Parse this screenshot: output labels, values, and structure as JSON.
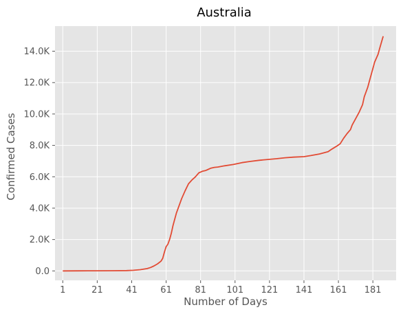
{
  "chart_data": {
    "type": "line",
    "title": "Australia",
    "xlabel": "Number of Days",
    "ylabel": "Confirmed Cases",
    "xlim": [
      -3.5,
      194.5
    ],
    "ylim": [
      -600,
      15600
    ],
    "x_ticks": [
      1,
      21,
      41,
      61,
      81,
      101,
      121,
      141,
      161,
      181
    ],
    "x_tick_labels": [
      "1",
      "21",
      "41",
      "61",
      "81",
      "101",
      "121",
      "141",
      "161",
      "181"
    ],
    "y_ticks": [
      0,
      2000,
      4000,
      6000,
      8000,
      10000,
      12000,
      14000
    ],
    "y_tick_labels": [
      "0.0",
      "2.0K",
      "4.0K",
      "6.0K",
      "8.0K",
      "10.0K",
      "12.0K",
      "14.0K"
    ],
    "grid": true,
    "colors": {
      "background": "#e5e5e5",
      "grid": "#ffffff",
      "line": "#e24a33"
    },
    "series": [
      {
        "x": [
          1,
          10,
          20,
          30,
          38,
          42,
          46,
          50,
          52,
          54,
          56,
          58,
          59,
          60,
          61,
          62,
          63,
          64,
          65,
          66,
          67,
          68,
          69,
          70,
          72,
          74,
          76,
          78,
          80,
          81,
          82,
          84,
          85,
          87,
          89,
          91,
          95,
          100,
          105,
          110,
          115,
          120,
          125,
          130,
          135,
          141,
          145,
          150,
          155,
          157,
          160,
          162,
          164,
          166,
          168,
          169,
          171,
          173,
          175,
          176,
          178,
          179,
          181,
          182,
          184,
          185,
          187
        ],
        "y": [
          0,
          5,
          10,
          15,
          20,
          40,
          80,
          150,
          220,
          320,
          450,
          620,
          800,
          1200,
          1550,
          1700,
          2000,
          2400,
          2900,
          3300,
          3700,
          4000,
          4300,
          4600,
          5100,
          5550,
          5800,
          6000,
          6250,
          6300,
          6350,
          6400,
          6450,
          6550,
          6600,
          6620,
          6700,
          6780,
          6900,
          6980,
          7050,
          7100,
          7150,
          7210,
          7250,
          7280,
          7350,
          7450,
          7600,
          7750,
          7950,
          8100,
          8450,
          8750,
          9000,
          9300,
          9700,
          10100,
          10600,
          11100,
          11700,
          12100,
          12900,
          13300,
          13800,
          14200,
          14950
        ]
      }
    ]
  }
}
